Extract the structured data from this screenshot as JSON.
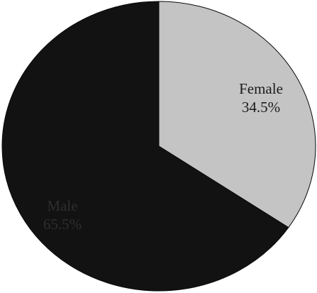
{
  "chart_data": {
    "type": "pie",
    "title": "",
    "slices": [
      {
        "label": "Female",
        "value": 34.5,
        "value_label": "34.5%",
        "color": "#c4c4c4",
        "text_color": "#1a1a1a"
      },
      {
        "label": "Male",
        "value": 65.5,
        "value_label": "65.5%",
        "color": "#121212",
        "text_color": "#2e2e2e"
      }
    ],
    "start_angle": "12 o'clock",
    "direction": "clockwise",
    "labels_inside": true,
    "legend": "none"
  }
}
